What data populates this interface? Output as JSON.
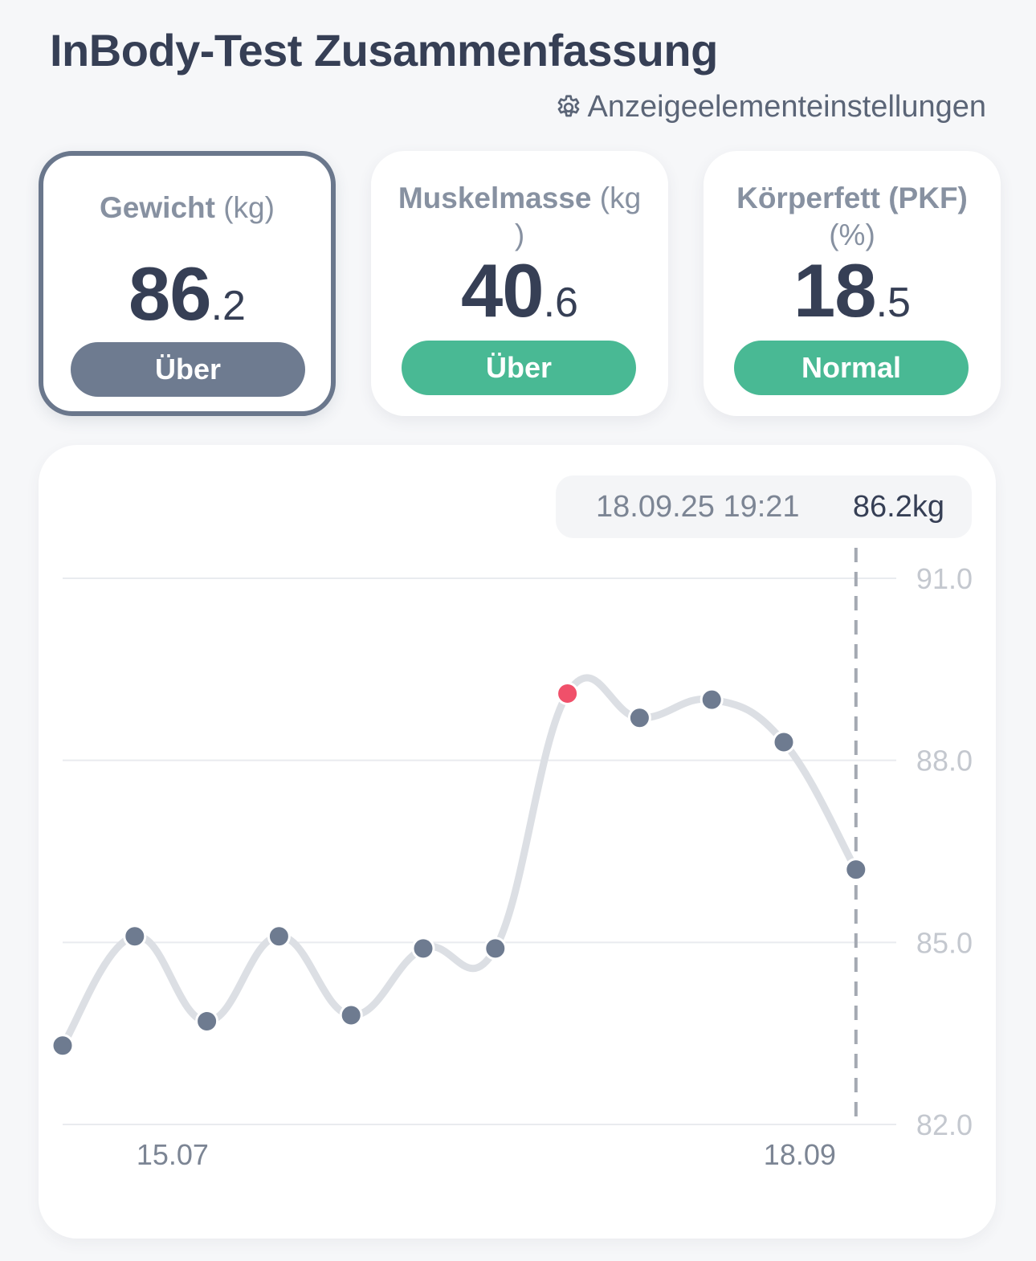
{
  "header": {
    "title": "InBody-Test Zusammenfassung",
    "settings_label": "Anzeigeelementeinstellungen",
    "settings_icon": "gear-icon"
  },
  "cards": [
    {
      "name": "Gewicht",
      "unit": "(kg)",
      "unit2": "",
      "int": "86",
      "dec": ".2",
      "status": "Über",
      "status_color": "#6e7b90",
      "selected": true
    },
    {
      "name": "Muskelmasse",
      "unit": "(kg",
      "unit2": ")",
      "int": "40",
      "dec": ".6",
      "status": "Über",
      "status_color": "#49b994",
      "selected": false
    },
    {
      "name": "Körperfett (PKF)",
      "unit": "",
      "unit2": "(%)",
      "int": "18",
      "dec": ".5",
      "status": "Normal",
      "status_color": "#49b994",
      "selected": false
    }
  ],
  "tooltip": {
    "date": "18.09.25 19:21",
    "value": "86.2kg"
  },
  "chart_data": {
    "type": "line",
    "y_tick_labels": [
      "91.0",
      "88.0",
      "85.0",
      "82.0"
    ],
    "y_ticks": [
      91.0,
      88.0,
      85.0,
      82.0
    ],
    "ylim": [
      82.0,
      91.0
    ],
    "x_tick_labels": [
      "15.07",
      "18.09"
    ],
    "x_tick_index": [
      0.8,
      10.5
    ],
    "grid": true,
    "line_color": "#dcdfe4",
    "point_color": "#6e7b90",
    "highlight_color": "#f0506a",
    "highlight_index": 7,
    "selected_index": 11,
    "values": [
      83.3,
      85.1,
      83.7,
      85.1,
      83.8,
      84.9,
      84.9,
      89.1,
      88.7,
      89.0,
      88.3,
      86.2
    ]
  }
}
